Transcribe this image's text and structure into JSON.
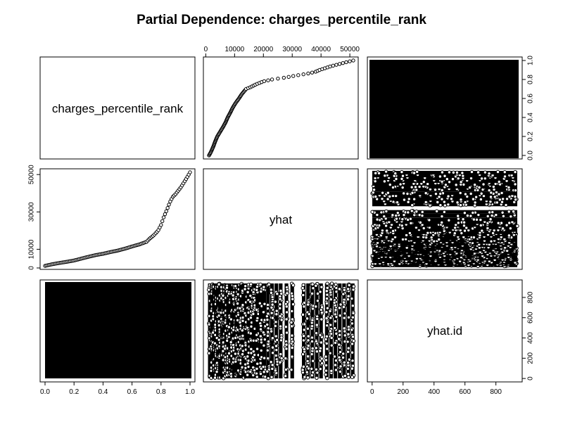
{
  "chart_data": {
    "type": "scatter",
    "kind": "pairs-matrix",
    "title": "Partial Dependence: charges_percentile_rank",
    "variables": [
      "charges_percentile_rank",
      "yhat",
      "yhat.id"
    ],
    "ranges": {
      "charges_percentile_rank": [
        0,
        1
      ],
      "yhat": [
        1121.87,
        51194.6
      ],
      "yhat.id": [
        1,
        938
      ]
    },
    "ticks": {
      "charges_percentile_rank": [
        0.0,
        0.2,
        0.4,
        0.6,
        0.8,
        1.0
      ],
      "charges_percentile_rank_labels": [
        "0.0",
        "0.2",
        "0.4",
        "0.6",
        "0.8",
        "1.0"
      ],
      "yhat_top": [
        0,
        10000,
        20000,
        30000,
        40000,
        50000
      ],
      "yhat_top_labels": [
        "0",
        "10000",
        "20000",
        "30000",
        "40000",
        "50000"
      ],
      "yhat_left": [
        0,
        10000,
        30000,
        50000
      ],
      "yhat_left_labels": [
        "0",
        "10000",
        "30000",
        "50000"
      ],
      "yhat.id_bottom": [
        0,
        200,
        400,
        600,
        800
      ],
      "yhat.id_bottom_labels": [
        "0",
        "200",
        "400",
        "600",
        "800"
      ],
      "yhat.id_right": [
        0,
        200,
        400,
        600,
        800
      ],
      "yhat.id_right_labels": [
        "0",
        "200",
        "400",
        "600",
        "800"
      ]
    },
    "curve": {
      "rank": [
        0.0,
        0.02,
        0.05,
        0.1,
        0.15,
        0.2,
        0.25,
        0.3,
        0.35,
        0.4,
        0.45,
        0.5,
        0.55,
        0.6,
        0.65,
        0.7,
        0.72,
        0.75,
        0.78,
        0.8,
        0.82,
        0.84,
        0.86,
        0.88,
        0.9,
        0.92,
        0.94,
        0.96,
        0.98,
        1.0
      ],
      "yhat": [
        1121.87,
        1500,
        2000,
        2700,
        3300,
        4000,
        5000,
        6000,
        6900,
        7600,
        8500,
        9300,
        10300,
        11500,
        12600,
        14000,
        15600,
        17500,
        20000,
        23000,
        27500,
        31000,
        35000,
        38000,
        39500,
        41500,
        43500,
        46000,
        48500,
        51194.6
      ]
    },
    "yhat_clusters": [
      1400,
      2100,
      2800,
      3500,
      4200,
      4900,
      5600,
      6300,
      7000,
      7700,
      8400,
      9100,
      9800,
      10600,
      11400,
      12200,
      13000,
      13900,
      14800,
      15800,
      16800,
      17900,
      19100,
      20300,
      21600,
      23000,
      24500,
      26000,
      28000,
      30000,
      34000,
      35500,
      37000,
      38500,
      40000,
      42000,
      43500,
      45000,
      46500,
      48000,
      49500,
      51000
    ],
    "diagonal_labels": [
      "charges_percentile_rank",
      "yhat",
      "yhat.id"
    ],
    "grid": false,
    "legend": "none"
  }
}
